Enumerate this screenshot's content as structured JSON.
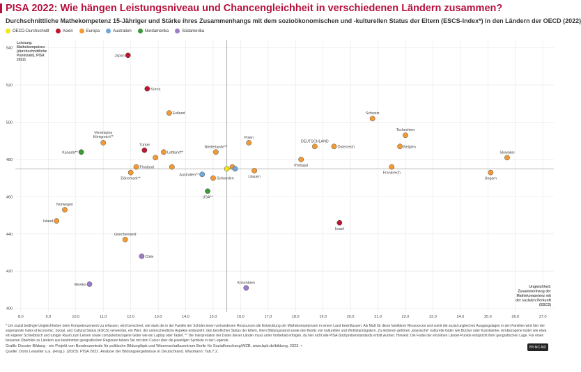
{
  "title": "PISA 2022: Wie hängen Leistungsniveau und Chancengleichheit in verschiedenen Ländern zusammen?",
  "subtitle": "Durchschnittliche Mathekompetenz 15-Jähriger und Stärke ihres Zusammenhangs mit dem sozioökonomischen und -kulturellen Status der Eltern (ESCS-Index*) in den Ländern der OECD (2022)",
  "colors": {
    "oecd": "#f2e51a",
    "asien": "#c0152f",
    "europa": "#f39a33",
    "australien": "#6ea8dc",
    "nordamerika": "#3b9a38",
    "suedamerika": "#9b7cc7"
  },
  "legend": [
    {
      "label": "OECD-Durchschnitt",
      "group": "oecd"
    },
    {
      "label": "Asien",
      "group": "asien"
    },
    {
      "label": "Europa",
      "group": "europa"
    },
    {
      "label": "Australien",
      "group": "australien"
    },
    {
      "label": "Nordamerika",
      "group": "nordamerika"
    },
    {
      "label": "Südamerika",
      "group": "suedamerika"
    }
  ],
  "chart_data": {
    "type": "scatter",
    "ylabel": "Leistung: Mathekompetenz (durchschnittliche Punktzahl), PISA 2022)",
    "xlabel": "Ungleichheit: Zusammenhang der Mathekompetenz mit der sozialen Herkunft (ESCS)",
    "xlim": [
      7.8,
      27.4
    ],
    "ylim": [
      398,
      544
    ],
    "xticks": [
      "8.0",
      "9.0",
      "10.0",
      "11.0",
      "12.0",
      "13.0",
      "14.0",
      "15.0",
      "16.0",
      "17.0",
      "18.0",
      "19.0",
      "20.0",
      "21.0",
      "22.0",
      "23.0",
      "24.0",
      "25.0",
      "26.0",
      "27.0"
    ],
    "xtick_values": [
      8,
      9,
      10,
      11,
      12,
      13,
      14,
      15,
      16,
      17,
      18,
      19,
      20,
      21,
      22,
      23,
      24,
      25,
      26,
      27
    ],
    "yticks": [
      "400",
      "420",
      "440",
      "460",
      "480",
      "500",
      "520",
      "540"
    ],
    "ytick_values": [
      400,
      420,
      440,
      460,
      480,
      500,
      520,
      540
    ],
    "reference_lines": {
      "x": 15.5,
      "y": 475
    },
    "points": [
      {
        "label": "Japan",
        "x": 11.9,
        "y": 536,
        "group": "asien",
        "label_pos": "left"
      },
      {
        "label": "Korea",
        "x": 12.6,
        "y": 518,
        "group": "asien",
        "label_pos": "right"
      },
      {
        "label": "Estland",
        "x": 13.4,
        "y": 505,
        "group": "europa",
        "label_pos": "right"
      },
      {
        "label": "Vereinigtes Königreich**",
        "x": 11.0,
        "y": 489,
        "group": "europa",
        "label_pos": "top"
      },
      {
        "label": "Kanada**",
        "x": 10.2,
        "y": 484,
        "group": "nordamerika",
        "label_pos": "left"
      },
      {
        "label": "Türkei",
        "x": 12.5,
        "y": 485,
        "group": "asien",
        "label_pos": "top"
      },
      {
        "label": "Lettland**",
        "x": 13.2,
        "y": 484,
        "group": "europa",
        "label_pos": "right"
      },
      {
        "label": "",
        "x": 12.9,
        "y": 481,
        "group": "europa",
        "label_pos": "none"
      },
      {
        "label": "Finnland",
        "x": 12.2,
        "y": 476,
        "group": "europa",
        "label_pos": "right"
      },
      {
        "label": "",
        "x": 13.5,
        "y": 476,
        "group": "europa",
        "label_pos": "none"
      },
      {
        "label": "Dänemark**",
        "x": 12.0,
        "y": 473,
        "group": "europa",
        "label_pos": "bottom"
      },
      {
        "label": "Australien**",
        "x": 14.6,
        "y": 472,
        "group": "australien",
        "label_pos": "left"
      },
      {
        "label": "Niederlande**",
        "x": 15.1,
        "y": 484,
        "group": "europa",
        "label_pos": "top"
      },
      {
        "label": "Schweden",
        "x": 15.0,
        "y": 470,
        "group": "europa",
        "label_pos": "right"
      },
      {
        "label": "USA**",
        "x": 14.8,
        "y": 463,
        "group": "nordamerika",
        "label_pos": "bottom"
      },
      {
        "label": "",
        "x": 15.5,
        "y": 475,
        "group": "oecd",
        "label_pos": "none"
      },
      {
        "label": "",
        "x": 15.7,
        "y": 476,
        "group": "europa",
        "label_pos": "none"
      },
      {
        "label": "",
        "x": 15.8,
        "y": 475,
        "group": "australien",
        "label_pos": "none"
      },
      {
        "label": "Polen",
        "x": 16.3,
        "y": 489,
        "group": "europa",
        "label_pos": "top"
      },
      {
        "label": "Litauen",
        "x": 16.5,
        "y": 474,
        "group": "europa",
        "label_pos": "bottom"
      },
      {
        "label": "Portugal",
        "x": 18.2,
        "y": 480,
        "group": "europa",
        "label_pos": "bottom"
      },
      {
        "label": "DEUTSCHLAND",
        "x": 18.7,
        "y": 487,
        "group": "europa",
        "label_pos": "top"
      },
      {
        "label": "Österreich",
        "x": 19.4,
        "y": 487,
        "group": "europa",
        "label_pos": "right"
      },
      {
        "label": "Schweiz",
        "x": 20.8,
        "y": 502,
        "group": "europa",
        "label_pos": "top"
      },
      {
        "label": "Tschechien",
        "x": 22.0,
        "y": 493,
        "group": "europa",
        "label_pos": "top"
      },
      {
        "label": "Belgien",
        "x": 21.8,
        "y": 487,
        "group": "europa",
        "label_pos": "right"
      },
      {
        "label": "Frankreich",
        "x": 21.5,
        "y": 476,
        "group": "europa",
        "label_pos": "bottom"
      },
      {
        "label": "Slowakei",
        "x": 25.7,
        "y": 481,
        "group": "europa",
        "label_pos": "top"
      },
      {
        "label": "Ungarn",
        "x": 25.1,
        "y": 473,
        "group": "europa",
        "label_pos": "bottom"
      },
      {
        "label": "Israel",
        "x": 19.6,
        "y": 446,
        "group": "asien",
        "label_pos": "bottom"
      },
      {
        "label": "Norwegen",
        "x": 9.6,
        "y": 453,
        "group": "europa",
        "label_pos": "top"
      },
      {
        "label": "Island",
        "x": 9.3,
        "y": 447,
        "group": "europa",
        "label_pos": "left"
      },
      {
        "label": "Griechenland",
        "x": 11.8,
        "y": 437,
        "group": "europa",
        "label_pos": "top"
      },
      {
        "label": "Chile",
        "x": 12.4,
        "y": 428,
        "group": "suedamerika",
        "label_pos": "right"
      },
      {
        "label": "Mexiko",
        "x": 10.5,
        "y": 413,
        "group": "suedamerika",
        "label_pos": "left"
      },
      {
        "label": "Kolumbien",
        "x": 16.2,
        "y": 411,
        "group": "suedamerika",
        "label_pos": "top"
      }
    ]
  },
  "footnote": "* Um sozial bedingte Ungleichheiten beim Kompetenzerwerb zu erfassen, wird berechnet, wie stark die in der Familie der Schüler:innen vorhandenen Ressourcen die Entwicklung der Mathekompetenzen in einem Land beeinflussen. Als Maß für diese familiären Ressourcen und somit die sozial ungleichen Ausgangslagen in den Familien wird hier der sogenannte Index of Economic, Social, and Cultural Status (ESCS) verwendet, ein Wert, der unterschiedliche Aspekte einbezieht: den beruflichen Status der Eltern, ihren Bildungsstand sowie den Besitz von kulturellen und Wohlstandsgütern. Zu letzteren gehören „klassische“ kulturelle Güter wie Bücher oder Kunstwerke, lernbezogene Güter wie etwa ein eigener Schreibtisch und ruhiger Raum zum Lernen sowie computerbezogene Güter wie ein Laptop oder Tablet. ** Die Interpretation der Daten dieser Länder muss unter Vorbehalt erfolgen, da hier nicht alle PISA-Stichprobenstandards erfüllt wurden. Hinweis: Die Farbe der einzelnen Länder-Punkte entspricht ihrer geografischen Lage. Für einen besseren Überblick zu Ländern aus bestimmten geografischen Regionen fahren Sie mit dem Cursor über die jeweiligen Symbole in der Legende.",
  "credit_graphic": "Grafik: Dossier Bildung - ein Projekt von Bundeszentrale für politische Bildung/bpb und Wissenschaftszentrum Berlin für Sozialforschung/WZB, www.bpb.de/bildung, 2023. •",
  "credit_source": "Quelle: Doris Lewalter u.a. (Hrsg.). (2023): PISA 2022. Analyse der Bildungsergebnisse in Deutschland. Waxmann: Tab.7.2.",
  "license": "BY-NC-ND"
}
